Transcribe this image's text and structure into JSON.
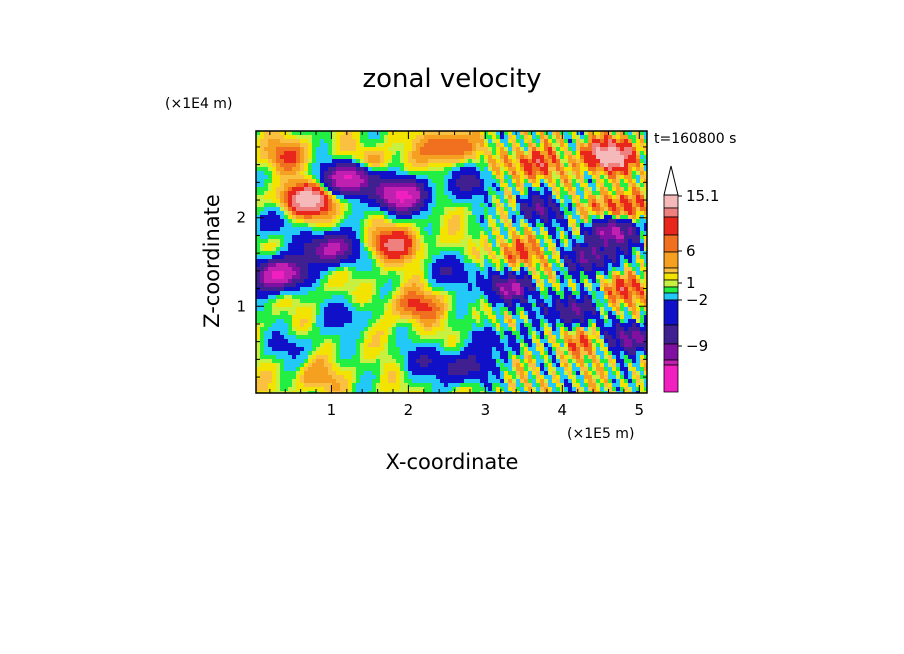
{
  "chart_data": {
    "type": "heatmap",
    "title": "zonal velocity",
    "xlabel": "X-coordinate",
    "ylabel": "Z-coordinate",
    "x_unit": "(×1E5 m)",
    "y_unit": "(×1E4 m)",
    "time_label": "t=160800 s",
    "x_ticks": [
      "1",
      "2",
      "3",
      "4",
      "5"
    ],
    "y_ticks": [
      "1",
      "2"
    ],
    "x_tick_values": [
      1,
      2,
      3,
      4,
      5
    ],
    "y_tick_values": [
      1,
      2
    ],
    "xlim": [
      0.02,
      5.1
    ],
    "ylim": [
      0.02,
      2.98
    ],
    "grid": false,
    "colorbar": {
      "position": "right",
      "labeled_levels": [
        "15.1",
        "6",
        "1",
        "-2",
        "-9"
      ],
      "colors_top_to_bottom": [
        "#f6b9b9",
        "#ef8080",
        "#e8261c",
        "#f07020",
        "#f5a020",
        "#fac040",
        "#f2e400",
        "#c8f040",
        "#22ee44",
        "#22c8f8",
        "#1010c8",
        "#402090",
        "#8010a0",
        "#c020b0",
        "#f020c0"
      ],
      "extend_top": true
    },
    "blobs": [
      {
        "x": 0.7,
        "y": 2.2,
        "v": 14
      },
      {
        "x": 1.8,
        "y": 1.7,
        "v": 9
      },
      {
        "x": 2.5,
        "y": 2.8,
        "v": 7
      },
      {
        "x": 4.6,
        "y": 2.7,
        "v": 15
      },
      {
        "x": 4.7,
        "y": 2.1,
        "v": 8
      },
      {
        "x": 2.1,
        "y": 1.0,
        "v": 6
      },
      {
        "x": 0.5,
        "y": 1.3,
        "v": 6
      },
      {
        "x": 3.6,
        "y": 2.6,
        "v": 7
      },
      {
        "x": 3.4,
        "y": 1.6,
        "v": 5
      },
      {
        "x": 4.9,
        "y": 1.2,
        "v": 6
      },
      {
        "x": 0.4,
        "y": 2.7,
        "v": 5
      },
      {
        "x": 1.5,
        "y": 2.6,
        "v": 5
      },
      {
        "x": 4.3,
        "y": 0.6,
        "v": 4
      },
      {
        "x": 0.8,
        "y": 0.2,
        "v": 3
      },
      {
        "x": 1.25,
        "y": 2.45,
        "v": -20
      },
      {
        "x": 1.9,
        "y": 2.25,
        "v": -20
      },
      {
        "x": 1.0,
        "y": 1.65,
        "v": -15
      },
      {
        "x": 0.35,
        "y": 1.35,
        "v": -25
      },
      {
        "x": 4.65,
        "y": 1.85,
        "v": -14
      },
      {
        "x": 4.4,
        "y": 1.55,
        "v": -10
      },
      {
        "x": 3.3,
        "y": 1.2,
        "v": -12
      },
      {
        "x": 4.1,
        "y": 0.95,
        "v": -10
      },
      {
        "x": 4.9,
        "y": 0.65,
        "v": -12
      },
      {
        "x": 2.7,
        "y": 0.3,
        "v": -8
      },
      {
        "x": 1.2,
        "y": 0.9,
        "v": -4
      },
      {
        "x": 2.6,
        "y": 1.4,
        "v": -5
      },
      {
        "x": 0.5,
        "y": 0.55,
        "v": -3
      },
      {
        "x": 3.7,
        "y": 2.1,
        "v": -8
      },
      {
        "x": 2.8,
        "y": 2.4,
        "v": -6
      },
      {
        "x": 0.15,
        "y": 1.95,
        "v": -4
      },
      {
        "x": 3.2,
        "y": 0.6,
        "v": -5
      },
      {
        "x": 2.2,
        "y": 0.4,
        "v": -4
      }
    ]
  }
}
